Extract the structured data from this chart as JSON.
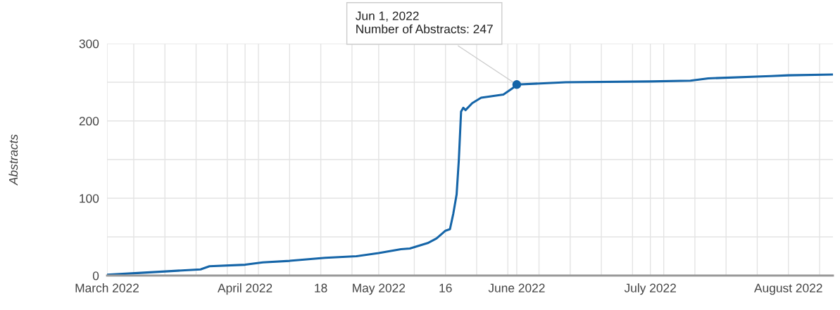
{
  "chart_data": {
    "type": "line",
    "ylabel": "Abstracts",
    "x": [
      "2022-03-01",
      "2022-03-10",
      "2022-03-22",
      "2022-03-24",
      "2022-04-01",
      "2022-04-05",
      "2022-04-11",
      "2022-04-19",
      "2022-04-26",
      "2022-05-01",
      "2022-05-06",
      "2022-05-08",
      "2022-05-12",
      "2022-05-14",
      "2022-05-16",
      "2022-05-17T00:00",
      "2022-05-17T18:00",
      "2022-05-18T12:00",
      "2022-05-19T00:00",
      "2022-05-19T12:00",
      "2022-05-20T00:00",
      "2022-05-20T12:00",
      "2022-05-22",
      "2022-05-24",
      "2022-05-29",
      "2022-05-31",
      "2022-06-01",
      "2022-06-12",
      "2022-07-01",
      "2022-07-10",
      "2022-07-14",
      "2022-07-28",
      "2022-08-01",
      "2022-08-11"
    ],
    "series": [
      {
        "color": "#1565a8",
        "values": [
          1,
          4,
          8,
          12,
          14,
          17,
          19,
          23,
          25,
          29,
          34,
          35,
          42,
          48,
          58,
          60,
          80,
          105,
          150,
          212,
          217,
          214,
          223,
          230,
          234,
          242,
          247,
          250,
          251,
          252,
          255,
          258,
          259,
          260
        ]
      }
    ],
    "xlim": [
      "2022-03-01",
      "2022-08-11"
    ],
    "xticks": [
      {
        "value": "2022-03-01",
        "label": "March 2022"
      },
      {
        "value": "2022-03-07",
        "label": null
      },
      {
        "value": "2022-03-14",
        "label": null
      },
      {
        "value": "2022-03-21",
        "label": null
      },
      {
        "value": "2022-03-28",
        "label": null
      },
      {
        "value": "2022-04-01",
        "label": "April 2022"
      },
      {
        "value": "2022-04-04",
        "label": null
      },
      {
        "value": "2022-04-11",
        "label": null
      },
      {
        "value": "2022-04-18",
        "label": "18"
      },
      {
        "value": "2022-04-25",
        "label": null
      },
      {
        "value": "2022-05-01",
        "label": "May 2022"
      },
      {
        "value": "2022-05-09",
        "label": null
      },
      {
        "value": "2022-05-16",
        "label": "16"
      },
      {
        "value": "2022-05-23",
        "label": null
      },
      {
        "value": "2022-05-30",
        "label": null
      },
      {
        "value": "2022-06-01",
        "label": "June 2022"
      },
      {
        "value": "2022-06-06",
        "label": null
      },
      {
        "value": "2022-06-13",
        "label": null
      },
      {
        "value": "2022-06-20",
        "label": null
      },
      {
        "value": "2022-06-27",
        "label": null
      },
      {
        "value": "2022-07-01",
        "label": "July 2022"
      },
      {
        "value": "2022-07-04",
        "label": null
      },
      {
        "value": "2022-07-11",
        "label": null
      },
      {
        "value": "2022-07-18",
        "label": null
      },
      {
        "value": "2022-07-25",
        "label": null
      },
      {
        "value": "2022-08-01",
        "label": "August 2022"
      },
      {
        "value": "2022-08-08",
        "label": null
      }
    ],
    "ylim": [
      0,
      300
    ],
    "yticks": [
      0,
      {
        "value": 50,
        "label": null
      },
      100,
      {
        "value": 150,
        "label": null
      },
      200,
      {
        "value": 250,
        "label": null
      },
      300
    ],
    "grid": true,
    "legend": false,
    "marker": "none",
    "line_style": "solid",
    "annotations": [
      {
        "text": "Jun 1, 2022\nNumber of Abstracts: 247",
        "x": "2022-06-01",
        "y": 247
      }
    ]
  }
}
